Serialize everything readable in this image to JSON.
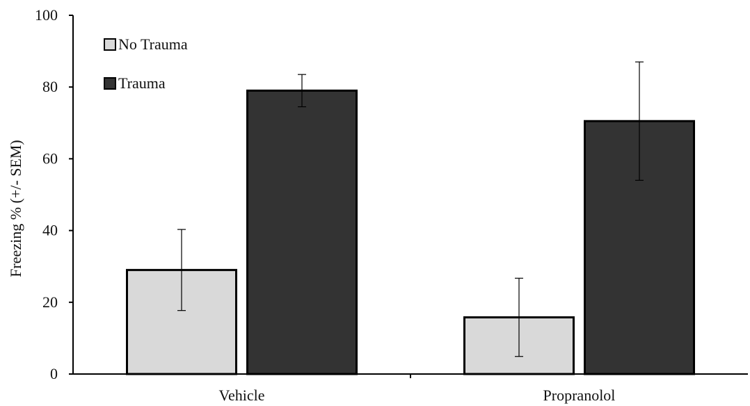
{
  "chart_data": {
    "type": "bar",
    "title": "",
    "xlabel": "",
    "ylabel": "Freezing % (+/- SEM)",
    "ylim": [
      0,
      100
    ],
    "yticks": [
      0,
      20,
      40,
      60,
      80,
      100
    ],
    "categories": [
      "Vehicle",
      "Propranolol"
    ],
    "series": [
      {
        "name": "No Trauma",
        "color": "#d9d9d9",
        "values": [
          29,
          15.8
        ],
        "errors": [
          11.3,
          10.9
        ]
      },
      {
        "name": "Trauma",
        "color": "#333333",
        "values": [
          79,
          70.5
        ],
        "errors": [
          4.5,
          16.5
        ]
      }
    ],
    "legend_position": "top-left",
    "grid": false
  }
}
